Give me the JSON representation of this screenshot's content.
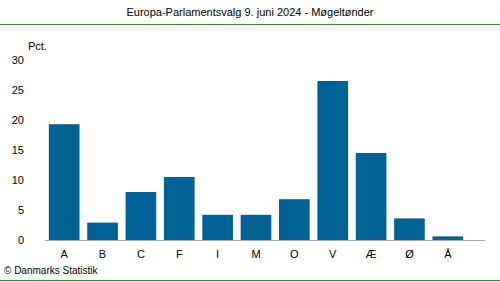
{
  "chart_data": {
    "type": "bar",
    "title": "Europa-Parlamentsvalg 9. juni 2024 - Møgeltønder",
    "y_label": "Pct.",
    "source": "© Danmarks Statistik",
    "categories": [
      "A",
      "B",
      "C",
      "F",
      "I",
      "M",
      "O",
      "V",
      "Æ",
      "Ø",
      "Å"
    ],
    "values": [
      19.3,
      2.9,
      8.0,
      10.5,
      4.2,
      4.2,
      6.8,
      26.5,
      14.5,
      3.6,
      0.6
    ],
    "color": "#006395",
    "ylim": [
      0,
      30
    ],
    "yticks": [
      0,
      5,
      10,
      15,
      20,
      25,
      30
    ],
    "grid": false
  }
}
